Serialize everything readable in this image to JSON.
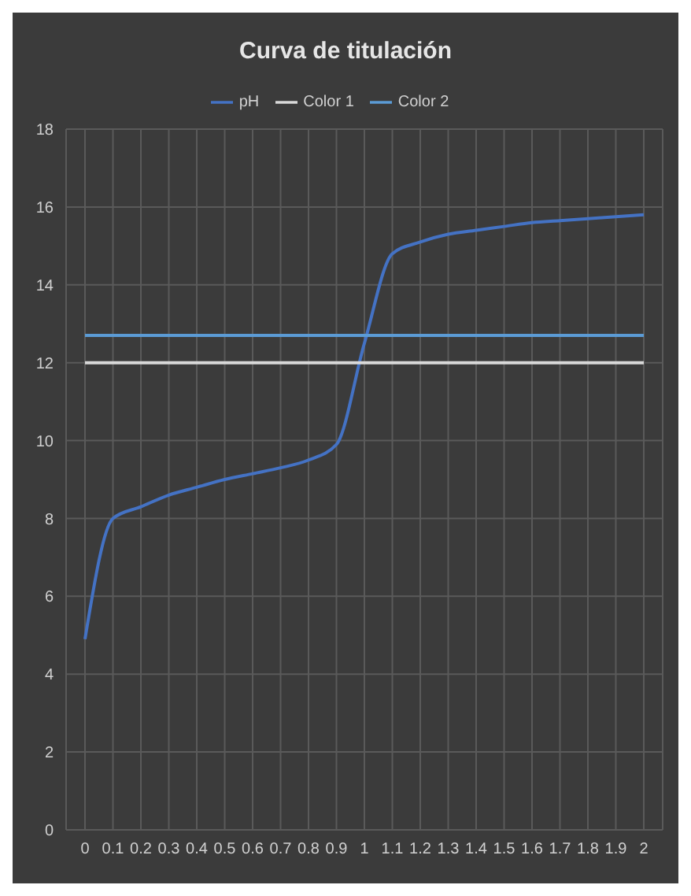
{
  "chart_data": {
    "type": "line",
    "title": "Curva de titulación",
    "categories": [
      "0",
      "0.1",
      "0.2",
      "0.3",
      "0.4",
      "0.5",
      "0.6",
      "0.7",
      "0.8",
      "0.9",
      "1",
      "1.1",
      "1.2",
      "1.3",
      "1.4",
      "1.5",
      "1.6",
      "1.7",
      "1.8",
      "1.9",
      "2"
    ],
    "series": [
      {
        "name": "pH",
        "color": "#4472c4",
        "values": [
          4.9,
          8.0,
          8.3,
          8.6,
          8.8,
          9.0,
          9.15,
          9.3,
          9.5,
          9.9,
          12.5,
          14.8,
          15.1,
          15.3,
          15.4,
          15.5,
          15.6,
          15.65,
          15.7,
          15.75,
          15.8
        ]
      },
      {
        "name": "Color 1",
        "color": "#d9d9d9",
        "values": [
          12,
          12,
          12,
          12,
          12,
          12,
          12,
          12,
          12,
          12,
          12,
          12,
          12,
          12,
          12,
          12,
          12,
          12,
          12,
          12,
          12
        ]
      },
      {
        "name": "Color 2",
        "color": "#5b9bd5",
        "values": [
          12.7,
          12.7,
          12.7,
          12.7,
          12.7,
          12.7,
          12.7,
          12.7,
          12.7,
          12.7,
          12.7,
          12.7,
          12.7,
          12.7,
          12.7,
          12.7,
          12.7,
          12.7,
          12.7,
          12.7,
          12.7
        ]
      }
    ],
    "ylim": [
      0,
      18
    ],
    "yticks": [
      0,
      2,
      4,
      6,
      8,
      10,
      12,
      14,
      16,
      18
    ],
    "grid": true,
    "legend": "top",
    "marker": "none",
    "line_style": "solid"
  }
}
